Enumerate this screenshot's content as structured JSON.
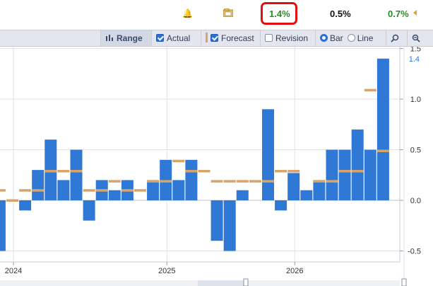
{
  "header": {
    "actual": "1.4%",
    "consensus": "0.5%",
    "previous": "0.7%",
    "actual_color": "#2a8a2a",
    "previous_color": "#2a8a2a",
    "highlight_color": "#e01010",
    "icons": [
      "bell-icon",
      "calendar-folder-icon",
      "previous-revision-arrow-icon"
    ]
  },
  "toolbar": {
    "range_label": "Range",
    "actual_label": "Actual",
    "forecast_label": "Forecast",
    "revision_label": "Revision",
    "bar_label": "Bar",
    "line_label": "Line",
    "actual_checked": true,
    "forecast_checked": true,
    "revision_checked": false,
    "selected_mode": "Bar",
    "icons": [
      "range-icon",
      "search-icon",
      "zoom-out-icon"
    ]
  },
  "chart_data": {
    "type": "bar",
    "series": [
      {
        "name": "Actual",
        "color": "#2f78d6",
        "values": [
          -0.5,
          null,
          -0.1,
          0.3,
          0.6,
          0.2,
          0.5,
          -0.2,
          0.2,
          0.1,
          0.2,
          0.0,
          0.2,
          0.4,
          0.2,
          0.4,
          0.0,
          -0.4,
          -0.5,
          0.1,
          0.0,
          0.9,
          -0.1,
          0.27,
          0.1,
          0.2,
          0.5,
          0.5,
          0.7,
          0.5,
          1.4
        ]
      },
      {
        "name": "Forecast",
        "color": "#d9a46a",
        "values": [
          0.1,
          0.0,
          0.1,
          0.1,
          0.29,
          0.29,
          0.29,
          0.1,
          0.1,
          0.19,
          0.1,
          0.1,
          0.19,
          0.19,
          0.39,
          0.29,
          0.29,
          0.19,
          0.19,
          0.19,
          0.19,
          0.19,
          0.29,
          0.29,
          null,
          0.19,
          0.19,
          0.29,
          0.29,
          1.09,
          0.49
        ]
      }
    ],
    "x_labels": [
      "2024",
      "2025",
      "2026"
    ],
    "x_label_index": [
      2,
      14,
      24
    ],
    "y_ticks": [
      "1.5",
      "1.0",
      "0.5",
      "0.0",
      "-0.5"
    ],
    "y_tick_values": [
      1.5,
      1.0,
      0.5,
      0.0,
      -0.5
    ],
    "ylim": [
      -0.5,
      1.5
    ],
    "last_value_label": "1.4",
    "grid": true
  }
}
